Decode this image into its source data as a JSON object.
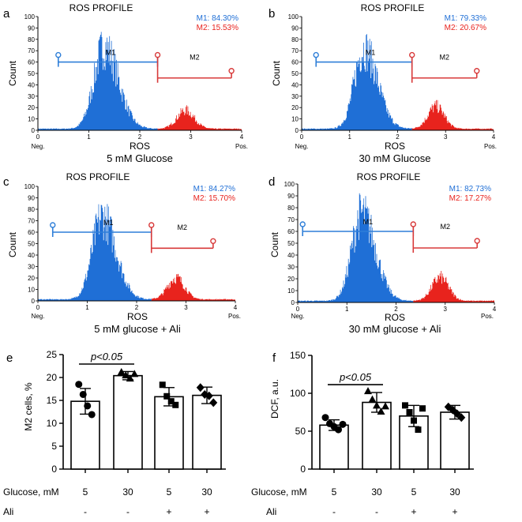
{
  "colors": {
    "m1": "#1f6fd6",
    "m2": "#e8231d",
    "m1_line": "#2f7fd8",
    "m2_line": "#d83a3a",
    "axis": "#000000"
  },
  "histogram_common": {
    "xlabel": "ROS",
    "ylabel": "Count",
    "x_min": 0,
    "x_max": 4,
    "y_min": 0,
    "y_max": 100,
    "x_ticks": [
      "0",
      "1",
      "2",
      "3",
      "4"
    ],
    "y_ticks": [
      "0",
      "10",
      "20",
      "30",
      "40",
      "50",
      "60",
      "70",
      "80",
      "90",
      "100"
    ],
    "neg_label": "Neg.",
    "pos_label": "Pos.",
    "m1_gate_label": "M1",
    "m2_gate_label": "M2"
  },
  "chart_data": [
    {
      "type": "histogram",
      "panel": "a",
      "title": "ROS PROFILE",
      "caption": "5 mM Glucose",
      "m1_legend": "M1: 84.30%",
      "m2_legend": "M2: 15.53%",
      "m1_gate": [
        0.4,
        2.35
      ],
      "m2_gate": [
        2.35,
        3.8
      ],
      "gate_y": 60,
      "peak1": {
        "x": 1.3,
        "height": 80
      },
      "peak2": {
        "x": 2.9,
        "height": 18
      }
    },
    {
      "type": "histogram",
      "panel": "b",
      "title": "ROS PROFILE",
      "caption": "30 mM Glucose",
      "m1_legend": "M1: 79.33%",
      "m2_legend": "M2: 20.67%",
      "m1_gate": [
        0.3,
        2.3
      ],
      "m2_gate": [
        2.3,
        3.65
      ],
      "gate_y": 60,
      "peak1": {
        "x": 1.3,
        "height": 78
      },
      "peak2": {
        "x": 2.8,
        "height": 22
      }
    },
    {
      "type": "histogram",
      "panel": "c",
      "title": "ROS PROFILE",
      "caption": "5 mM glucose + Ali",
      "m1_legend": "M1: 84.27%",
      "m2_legend": "M2: 15.70%",
      "m1_gate": [
        0.3,
        2.3
      ],
      "m2_gate": [
        2.3,
        3.55
      ],
      "gate_y": 60,
      "peak1": {
        "x": 1.3,
        "height": 80
      },
      "peak2": {
        "x": 2.8,
        "height": 21
      }
    },
    {
      "type": "histogram",
      "panel": "d",
      "title": "ROS PROFILE",
      "caption": "30 mM glucose + Ali",
      "m1_legend": "M1: 82.73%",
      "m2_legend": "M2: 17.27%",
      "m1_gate": [
        0.1,
        2.35
      ],
      "m2_gate": [
        2.35,
        3.65
      ],
      "gate_y": 60,
      "peak1": {
        "x": 1.3,
        "height": 82
      },
      "peak2": {
        "x": 2.9,
        "height": 22
      }
    },
    {
      "type": "bar",
      "panel": "e",
      "ylabel": "M2 cells, %",
      "ylim": [
        0,
        25
      ],
      "y_ticks": [
        "0",
        "5",
        "10",
        "15",
        "20",
        "25"
      ],
      "values": [
        14.8,
        20.4,
        15.8,
        16.1
      ],
      "errors": [
        2.8,
        0.9,
        2.0,
        1.8
      ],
      "points": [
        [
          18.5,
          16.3,
          13.8,
          11.9
        ],
        [
          21.2,
          20.5,
          19.8,
          20.8
        ],
        [
          18.4,
          15.9,
          14.8,
          14.0
        ],
        [
          17.8,
          16.3,
          16.0,
          14.5
        ]
      ],
      "markers": [
        "circle",
        "triangle",
        "square",
        "diamond"
      ],
      "significance": {
        "label": "p<0.05",
        "pair": [
          0,
          1
        ]
      },
      "row_label_glucose": "Glucose, mM",
      "glucose": [
        "5",
        "30",
        "5",
        "30"
      ],
      "row_label_ali": "Ali",
      "ali": [
        "-",
        "-",
        "+",
        "+"
      ]
    },
    {
      "type": "bar",
      "panel": "f",
      "ylabel": "DCF, a.u.",
      "ylim": [
        0,
        150
      ],
      "y_ticks": [
        "0",
        "50",
        "100",
        "150"
      ],
      "values": [
        58,
        88,
        70,
        75
      ],
      "errors": [
        7,
        13,
        14,
        9
      ],
      "points": [
        [
          68,
          60,
          56,
          52,
          59
        ],
        [
          103,
          92,
          84,
          76,
          83
        ],
        [
          84,
          75,
          64,
          52,
          80
        ],
        [
          82,
          78,
          73,
          68
        ]
      ],
      "markers": [
        "circle",
        "triangle",
        "square",
        "diamond"
      ],
      "significance": {
        "label": "p<0.05",
        "pair": [
          0,
          1
        ]
      },
      "row_label_glucose": "Glucose, mM",
      "glucose": [
        "5",
        "30",
        "5",
        "30"
      ],
      "row_label_ali": "Ali",
      "ali": [
        "-",
        "-",
        "+",
        "+"
      ]
    }
  ]
}
